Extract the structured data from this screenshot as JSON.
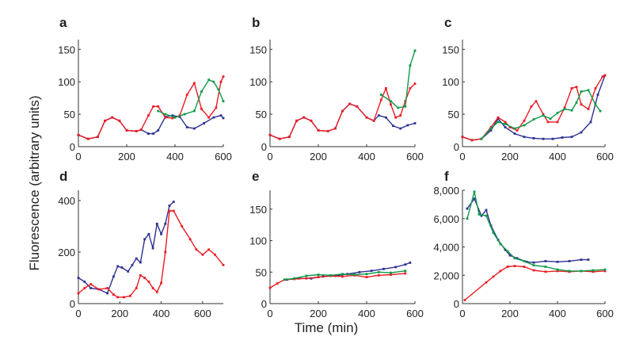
{
  "figure": {
    "ylabel": "Fluorescence (arbitrary units)",
    "xlabel": "Time (min)"
  },
  "colors": {
    "blue": "#2e3192",
    "red": "#ec1c24",
    "green": "#0e9a48",
    "axis": "#333333"
  },
  "chart_data": [
    {
      "panel": "a",
      "type": "line",
      "xlim": [
        0,
        600
      ],
      "ylim": [
        0,
        165
      ],
      "xticks": [
        "0",
        "200",
        "400",
        "600"
      ],
      "yticks": [
        "0",
        "50",
        "100",
        "150"
      ],
      "grid": false,
      "series": [
        {
          "color": "blue",
          "x": [
            0,
            40,
            80,
            110,
            140,
            170,
            200,
            240,
            260,
            290,
            310,
            330,
            360,
            390,
            420,
            450,
            480,
            520,
            560,
            590,
            600
          ],
          "y": [
            18,
            12,
            15,
            40,
            45,
            40,
            25,
            24,
            26,
            20,
            20,
            25,
            46,
            48,
            46,
            30,
            28,
            36,
            45,
            48,
            44
          ]
        },
        {
          "color": "red",
          "x": [
            0,
            40,
            80,
            110,
            140,
            170,
            200,
            240,
            260,
            290,
            310,
            330,
            360,
            390,
            420,
            450,
            480,
            510,
            540,
            570,
            590,
            600
          ],
          "y": [
            18,
            12,
            15,
            40,
            45,
            40,
            25,
            24,
            26,
            48,
            62,
            62,
            45,
            44,
            48,
            80,
            98,
            58,
            45,
            60,
            100,
            108
          ]
        },
        {
          "color": "green",
          "x": [
            330,
            360,
            400,
            440,
            480,
            510,
            540,
            560,
            580,
            600
          ],
          "y": [
            55,
            50,
            45,
            50,
            55,
            85,
            103,
            100,
            88,
            70
          ]
        }
      ]
    },
    {
      "panel": "b",
      "type": "line",
      "xlim": [
        0,
        600
      ],
      "ylim": [
        0,
        165
      ],
      "xticks": [
        "0",
        "200",
        "400",
        "600"
      ],
      "yticks": [
        "0",
        "50",
        "100",
        "150"
      ],
      "grid": false,
      "series": [
        {
          "color": "blue",
          "x": [
            0,
            40,
            80,
            110,
            140,
            170,
            200,
            240,
            270,
            300,
            330,
            360,
            400,
            430,
            450,
            480,
            510,
            540,
            570,
            600
          ],
          "y": [
            18,
            12,
            15,
            40,
            45,
            40,
            25,
            24,
            28,
            55,
            66,
            62,
            45,
            40,
            48,
            45,
            32,
            28,
            33,
            36
          ]
        },
        {
          "color": "red",
          "x": [
            0,
            40,
            80,
            110,
            140,
            170,
            200,
            240,
            270,
            300,
            330,
            360,
            400,
            430,
            460,
            480,
            500,
            520,
            540,
            560,
            580,
            600
          ],
          "y": [
            18,
            12,
            15,
            40,
            45,
            40,
            25,
            24,
            28,
            55,
            66,
            62,
            45,
            40,
            72,
            90,
            65,
            45,
            48,
            70,
            90,
            97
          ]
        },
        {
          "color": "green",
          "x": [
            460,
            500,
            530,
            560,
            580,
            600
          ],
          "y": [
            80,
            70,
            60,
            62,
            125,
            148
          ]
        }
      ]
    },
    {
      "panel": "c",
      "type": "line",
      "xlim": [
        0,
        600
      ],
      "ylim": [
        0,
        165
      ],
      "xticks": [
        "0",
        "200",
        "400",
        "600"
      ],
      "yticks": [
        "0",
        "50",
        "100",
        "150"
      ],
      "grid": false,
      "series": [
        {
          "color": "blue",
          "x": [
            0,
            40,
            80,
            120,
            150,
            180,
            220,
            260,
            300,
            340,
            380,
            420,
            460,
            500,
            540,
            570,
            600
          ],
          "y": [
            15,
            10,
            12,
            25,
            43,
            30,
            20,
            15,
            13,
            12,
            12,
            14,
            15,
            22,
            38,
            80,
            110
          ]
        },
        {
          "color": "red",
          "x": [
            0,
            40,
            80,
            120,
            150,
            180,
            200,
            230,
            260,
            290,
            310,
            340,
            360,
            400,
            430,
            460,
            480,
            500,
            530,
            560,
            590,
            600
          ],
          "y": [
            15,
            10,
            12,
            30,
            45,
            38,
            30,
            25,
            40,
            62,
            70,
            50,
            38,
            38,
            60,
            90,
            92,
            65,
            58,
            90,
            108,
            110
          ]
        },
        {
          "color": "green",
          "x": [
            80,
            120,
            150,
            180,
            220,
            260,
            300,
            340,
            370,
            400,
            430,
            460,
            480,
            500,
            530,
            560,
            580
          ],
          "y": [
            12,
            28,
            38,
            35,
            28,
            33,
            42,
            48,
            43,
            52,
            58,
            56,
            68,
            85,
            87,
            65,
            55
          ]
        }
      ]
    },
    {
      "panel": "d",
      "type": "line",
      "xlim": [
        0,
        700
      ],
      "ylim": [
        0,
        440
      ],
      "xticks": [
        "0",
        "200",
        "400",
        "600"
      ],
      "yticks": [
        "0",
        "200",
        "400"
      ],
      "grid": false,
      "series": [
        {
          "color": "blue",
          "x": [
            0,
            30,
            60,
            100,
            140,
            170,
            190,
            210,
            240,
            260,
            280,
            300,
            320,
            340,
            360,
            380,
            400,
            420,
            440,
            460
          ],
          "y": [
            100,
            85,
            60,
            55,
            40,
            105,
            145,
            140,
            125,
            150,
            175,
            160,
            250,
            270,
            215,
            310,
            270,
            310,
            380,
            395
          ]
        },
        {
          "color": "red",
          "x": [
            0,
            30,
            60,
            100,
            140,
            170,
            190,
            220,
            250,
            280,
            300,
            320,
            340,
            360,
            380,
            400,
            420,
            440,
            460,
            500,
            540,
            570,
            600,
            630,
            660,
            700
          ],
          "y": [
            40,
            60,
            75,
            55,
            60,
            35,
            25,
            25,
            30,
            60,
            110,
            100,
            85,
            60,
            45,
            80,
            200,
            360,
            360,
            300,
            250,
            210,
            190,
            210,
            190,
            150
          ]
        }
      ]
    },
    {
      "panel": "e",
      "type": "line",
      "xlim": [
        0,
        600
      ],
      "ylim": [
        0,
        180
      ],
      "xticks": [
        "0",
        "200",
        "400",
        "600"
      ],
      "yticks": [
        "0",
        "50",
        "100",
        "150"
      ],
      "grid": false,
      "series": [
        {
          "color": "blue",
          "x": [
            70,
            120,
            170,
            220,
            270,
            320,
            370,
            420,
            470,
            520,
            560,
            580
          ],
          "y": [
            38,
            40,
            40,
            43,
            44,
            47,
            50,
            52,
            55,
            58,
            62,
            65
          ]
        },
        {
          "color": "red",
          "x": [
            0,
            30,
            60,
            100,
            150,
            200,
            250,
            300,
            350,
            400,
            450,
            500,
            560
          ],
          "y": [
            25,
            32,
            38,
            39,
            40,
            42,
            44,
            43,
            45,
            42,
            45,
            46,
            48
          ]
        },
        {
          "color": "green",
          "x": [
            60,
            100,
            150,
            200,
            250,
            300,
            350,
            400,
            450,
            500,
            560
          ],
          "y": [
            38,
            40,
            44,
            46,
            45,
            47,
            46,
            47,
            50,
            49,
            52
          ]
        }
      ]
    },
    {
      "panel": "f",
      "type": "line",
      "xlim": [
        0,
        600
      ],
      "ylim": [
        0,
        8000
      ],
      "xticks": [
        "0",
        "200",
        "400",
        "600"
      ],
      "yticks": [
        "0",
        "2,000",
        "4,000",
        "6,000",
        "8,000"
      ],
      "grid": false,
      "series": [
        {
          "color": "blue",
          "x": [
            20,
            50,
            80,
            100,
            120,
            150,
            180,
            200,
            230,
            270,
            300,
            350,
            400,
            450,
            500,
            530
          ],
          "y": [
            6700,
            7400,
            6200,
            6600,
            5500,
            4500,
            3800,
            3400,
            3200,
            2950,
            2900,
            3000,
            2950,
            3000,
            3100,
            3100
          ]
        },
        {
          "color": "red",
          "x": [
            10,
            100,
            130,
            160,
            190,
            220,
            260,
            300,
            350,
            400,
            450,
            500,
            550,
            600
          ],
          "y": [
            250,
            1500,
            1900,
            2300,
            2600,
            2650,
            2600,
            2350,
            2250,
            2300,
            2250,
            2300,
            2250,
            2300
          ]
        },
        {
          "color": "green",
          "x": [
            20,
            50,
            70,
            100,
            130,
            160,
            190,
            220,
            260,
            300,
            350,
            400,
            450,
            500,
            550,
            600
          ],
          "y": [
            6000,
            7900,
            6300,
            6200,
            5000,
            4200,
            3700,
            3200,
            3000,
            2700,
            2600,
            2400,
            2300,
            2300,
            2350,
            2400
          ]
        }
      ]
    }
  ]
}
